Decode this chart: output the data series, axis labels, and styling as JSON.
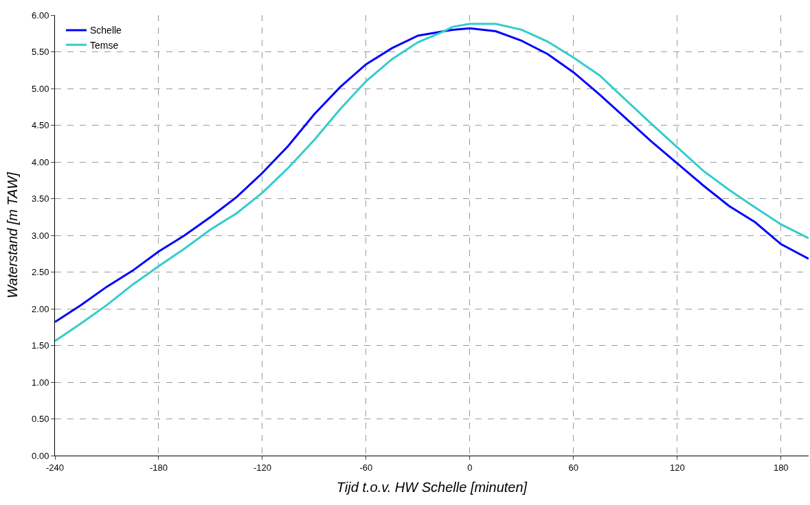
{
  "chart_data": {
    "type": "line",
    "xlabel": "Tijd t.o.v. HW Schelle [minuten]",
    "ylabel": "Waterstand [m TAW]",
    "x": [
      -240,
      -225,
      -210,
      -195,
      -180,
      -165,
      -150,
      -135,
      -120,
      -105,
      -90,
      -75,
      -60,
      -45,
      -30,
      -15,
      -10,
      0,
      15,
      30,
      45,
      60,
      75,
      90,
      105,
      120,
      135,
      150,
      165,
      180,
      196
    ],
    "series": [
      {
        "name": "Schelle",
        "color": "#0000ff",
        "values": [
          1.82,
          2.05,
          2.3,
          2.52,
          2.78,
          3.0,
          3.25,
          3.52,
          3.85,
          4.22,
          4.65,
          5.02,
          5.33,
          5.55,
          5.72,
          5.78,
          5.8,
          5.82,
          5.78,
          5.65,
          5.47,
          5.22,
          4.92,
          4.6,
          4.28,
          3.98,
          3.68,
          3.4,
          3.18,
          2.88,
          2.68
        ]
      },
      {
        "name": "Temse",
        "color": "#33cccc",
        "values": [
          1.56,
          1.8,
          2.05,
          2.33,
          2.58,
          2.82,
          3.08,
          3.3,
          3.58,
          3.92,
          4.3,
          4.72,
          5.1,
          5.4,
          5.63,
          5.78,
          5.84,
          5.88,
          5.88,
          5.8,
          5.64,
          5.42,
          5.18,
          4.85,
          4.52,
          4.2,
          3.88,
          3.62,
          3.38,
          3.15,
          2.96
        ]
      }
    ],
    "xlim": [
      -240,
      196
    ],
    "xticks": [
      -240,
      -180,
      -120,
      -60,
      0,
      60,
      120,
      180
    ],
    "ylim": [
      0,
      6
    ],
    "yticks": [
      {
        "value": 0,
        "label": "0.00"
      },
      {
        "value": 0.5,
        "label": "0.50"
      },
      {
        "value": 1,
        "label": "1.00"
      },
      {
        "value": 1.5,
        "label": "1.50"
      },
      {
        "value": 2,
        "label": "2.00"
      },
      {
        "value": 2.5,
        "label": "2.50"
      },
      {
        "value": 3,
        "label": "3.00"
      },
      {
        "value": 3.5,
        "label": "3.50"
      },
      {
        "value": 4,
        "label": "4.00"
      },
      {
        "value": 4.5,
        "label": "4.50"
      },
      {
        "value": 5,
        "label": "5.00"
      },
      {
        "value": 5.5,
        "label": "5.50"
      },
      {
        "value": 6,
        "label": "6.00"
      }
    ],
    "grid": true,
    "legend": "top left",
    "marker": "none",
    "line_style": "solid"
  }
}
